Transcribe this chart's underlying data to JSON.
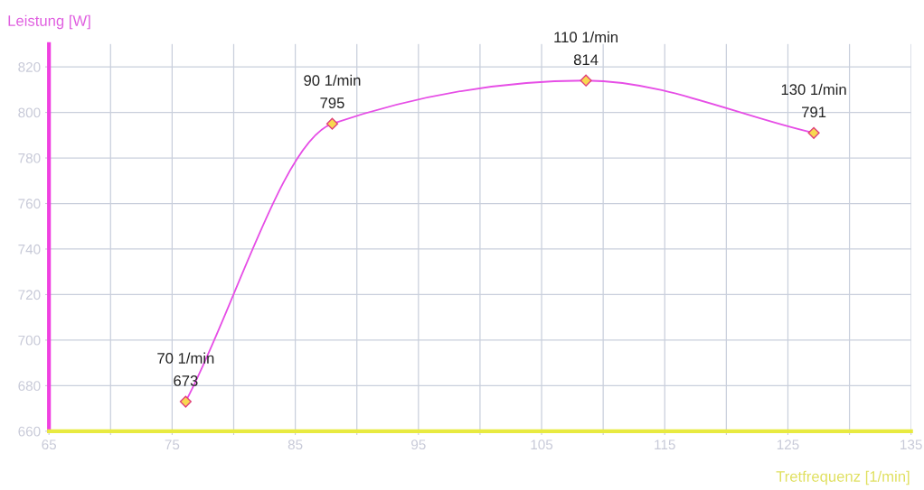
{
  "chart_data": {
    "type": "line",
    "xlabel": "Tretfrequenz [1/min]",
    "ylabel": "Leistung [W]",
    "x": [
      76.1,
      88.0,
      108.6,
      127.1
    ],
    "series": [
      {
        "color": "#e64ee6",
        "values": [
          673,
          795,
          814,
          791
        ]
      }
    ],
    "marker": "diamond",
    "line_style": "solid",
    "data_labels": true,
    "grid": true,
    "legend": false,
    "xlim": [
      65,
      135
    ],
    "ylim": [
      660,
      830
    ],
    "xticks": [
      65,
      {
        "value": 70,
        "label": null
      },
      75,
      {
        "value": 80,
        "label": null
      },
      85,
      {
        "value": 90,
        "label": null
      },
      95,
      {
        "value": 100,
        "label": null
      },
      105,
      {
        "value": 110,
        "label": null
      },
      115,
      {
        "value": 120,
        "label": null
      },
      125,
      {
        "value": 130,
        "label": null
      },
      135
    ],
    "yticks": [
      660,
      680,
      700,
      720,
      740,
      760,
      780,
      800,
      820
    ],
    "annotations": [
      {
        "text": "70 1/min",
        "x": 76.1,
        "y": 673
      },
      {
        "text": "90 1/min",
        "x": 88.0,
        "y": 795
      },
      {
        "text": "110 1/min",
        "x": 108.6,
        "y": 814
      },
      {
        "text": "130 1/min",
        "x": 127.1,
        "y": 791
      }
    ]
  }
}
